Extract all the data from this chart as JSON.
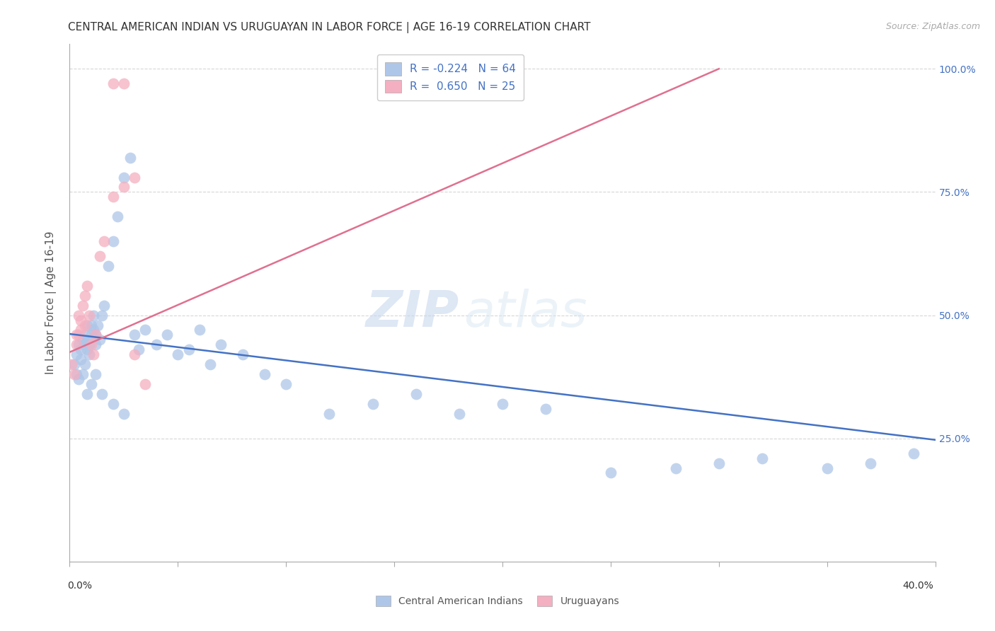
{
  "title": "CENTRAL AMERICAN INDIAN VS URUGUAYAN IN LABOR FORCE | AGE 16-19 CORRELATION CHART",
  "source": "Source: ZipAtlas.com",
  "ylabel": "In Labor Force | Age 16-19",
  "xlim": [
    0.0,
    0.4
  ],
  "ylim": [
    0.0,
    1.05
  ],
  "blue_R": -0.224,
  "blue_N": 64,
  "pink_R": 0.65,
  "pink_N": 25,
  "blue_color": "#aec6e8",
  "pink_color": "#f4afc0",
  "blue_line_color": "#4472c4",
  "pink_line_color": "#e07090",
  "watermark_zip": "ZIP",
  "watermark_atlas": "atlas",
  "legend_blue_r": "R = -0.224",
  "legend_blue_n": "N = 64",
  "legend_pink_r": "R =  0.650",
  "legend_pink_n": "N = 25",
  "blue_label": "Central American Indians",
  "pink_label": "Uruguayans",
  "blue_line_x": [
    0.0,
    0.4
  ],
  "blue_line_y": [
    0.462,
    0.247
  ],
  "pink_line_x": [
    0.0,
    0.3
  ],
  "pink_line_y": [
    0.425,
    1.0
  ],
  "blue_x": [
    0.002,
    0.003,
    0.003,
    0.004,
    0.004,
    0.005,
    0.005,
    0.006,
    0.006,
    0.007,
    0.007,
    0.007,
    0.008,
    0.008,
    0.008,
    0.009,
    0.009,
    0.01,
    0.01,
    0.011,
    0.011,
    0.012,
    0.012,
    0.013,
    0.014,
    0.015,
    0.016,
    0.018,
    0.02,
    0.022,
    0.025,
    0.028,
    0.03,
    0.032,
    0.035,
    0.04,
    0.045,
    0.05,
    0.055,
    0.06,
    0.065,
    0.07,
    0.08,
    0.09,
    0.1,
    0.12,
    0.14,
    0.16,
    0.18,
    0.2,
    0.22,
    0.25,
    0.28,
    0.3,
    0.32,
    0.35,
    0.37,
    0.39,
    0.008,
    0.01,
    0.012,
    0.015,
    0.02,
    0.025
  ],
  "blue_y": [
    0.4,
    0.38,
    0.42,
    0.44,
    0.37,
    0.43,
    0.41,
    0.45,
    0.38,
    0.44,
    0.4,
    0.46,
    0.43,
    0.45,
    0.48,
    0.42,
    0.44,
    0.46,
    0.48,
    0.47,
    0.5,
    0.44,
    0.46,
    0.48,
    0.45,
    0.5,
    0.52,
    0.6,
    0.65,
    0.7,
    0.78,
    0.82,
    0.46,
    0.43,
    0.47,
    0.44,
    0.46,
    0.42,
    0.43,
    0.47,
    0.4,
    0.44,
    0.42,
    0.38,
    0.36,
    0.3,
    0.32,
    0.34,
    0.3,
    0.32,
    0.31,
    0.18,
    0.19,
    0.2,
    0.21,
    0.19,
    0.2,
    0.22,
    0.34,
    0.36,
    0.38,
    0.34,
    0.32,
    0.3
  ],
  "pink_x": [
    0.001,
    0.002,
    0.003,
    0.003,
    0.004,
    0.004,
    0.005,
    0.005,
    0.006,
    0.007,
    0.007,
    0.008,
    0.009,
    0.01,
    0.011,
    0.012,
    0.014,
    0.016,
    0.02,
    0.025,
    0.03,
    0.035,
    0.02,
    0.025,
    0.03
  ],
  "pink_y": [
    0.4,
    0.38,
    0.44,
    0.46,
    0.46,
    0.5,
    0.47,
    0.49,
    0.52,
    0.48,
    0.54,
    0.56,
    0.5,
    0.44,
    0.42,
    0.46,
    0.62,
    0.65,
    0.74,
    0.76,
    0.78,
    0.36,
    0.97,
    0.97,
    0.42
  ]
}
